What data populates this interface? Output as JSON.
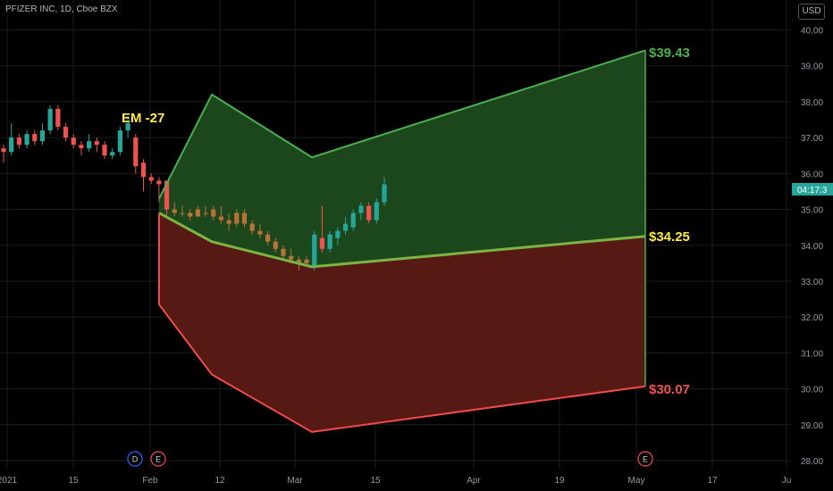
{
  "header": {
    "symbol": "PFIZER INC, 1D, Cboe BZX"
  },
  "currency": "USD",
  "price_badge": "04:17:3",
  "annotations": {
    "em": "EM -27",
    "upper": "$39.43",
    "mid": "$34.25",
    "lower": "$30.07"
  },
  "event_markers": [
    {
      "label": "D",
      "x": "Feb -6"
    },
    {
      "label": "E",
      "x": "Feb -2"
    },
    {
      "label": "E",
      "x": "May 1"
    }
  ],
  "colors": {
    "green": "#4caf50",
    "green_fill": "#1d4a1e",
    "red": "#f04a4a",
    "red_fill": "#5c1a14",
    "candle_up": "#26a69a",
    "candle_down": "#ef5350",
    "candle_brown": "#b5733a",
    "label_green": "#4caf50",
    "label_yellow": "#ffeb3b",
    "label_red": "#ef5350",
    "grid": "#1c1c1c",
    "axis_text": "#9598a1",
    "badge": "#26a69a",
    "marker_blue": "#2962ff"
  },
  "chart_data": {
    "type": "candlestick",
    "x_axis_ticks": [
      "2021",
      "15",
      "Feb",
      "12",
      "Mar",
      "15",
      "Apr",
      "19",
      "May",
      "17",
      "Ju"
    ],
    "y_axis_ticks": [
      "40.00",
      "39.00",
      "38.00",
      "37.00",
      "36.00",
      "35.00",
      "34.00",
      "33.00",
      "32.00",
      "31.00",
      "30.00",
      "29.00",
      "28.00"
    ],
    "ylim": [
      28,
      40
    ],
    "candles_ohlc": [
      [
        36.7,
        36.8,
        36.3,
        36.6
      ],
      [
        36.6,
        37.4,
        36.5,
        37.0
      ],
      [
        37.0,
        37.1,
        36.7,
        36.8
      ],
      [
        36.8,
        37.2,
        36.7,
        37.1
      ],
      [
        37.1,
        37.2,
        36.8,
        36.9
      ],
      [
        36.9,
        37.4,
        36.8,
        37.2
      ],
      [
        37.2,
        37.9,
        37.1,
        37.8
      ],
      [
        37.8,
        37.9,
        37.2,
        37.3
      ],
      [
        37.3,
        37.4,
        36.9,
        37.0
      ],
      [
        37.0,
        37.1,
        36.7,
        36.8
      ],
      [
        36.8,
        36.9,
        36.5,
        36.7
      ],
      [
        36.7,
        37.1,
        36.6,
        36.9
      ],
      [
        36.9,
        37.0,
        36.6,
        36.8
      ],
      [
        36.8,
        36.9,
        36.4,
        36.5
      ],
      [
        36.5,
        36.7,
        36.4,
        36.6
      ],
      [
        36.6,
        37.3,
        36.5,
        37.2
      ],
      [
        37.2,
        37.6,
        37.0,
        37.4
      ],
      [
        37.0,
        37.1,
        36.0,
        36.2
      ],
      [
        36.3,
        36.4,
        35.5,
        35.9
      ],
      [
        35.9,
        36.0,
        35.7,
        35.8
      ],
      [
        35.8,
        35.9,
        35.2,
        35.7
      ],
      [
        35.8,
        35.8,
        34.8,
        35.0
      ],
      [
        35.0,
        35.2,
        34.8,
        34.9
      ],
      [
        34.9,
        35.1,
        34.8,
        34.9
      ],
      [
        34.9,
        35.0,
        34.7,
        34.8
      ],
      [
        34.8,
        35.1,
        34.8,
        35.0
      ],
      [
        34.9,
        35.1,
        34.8,
        34.9
      ],
      [
        35.0,
        35.1,
        34.7,
        34.8
      ],
      [
        34.8,
        35.1,
        34.6,
        34.7
      ],
      [
        34.7,
        34.9,
        34.4,
        34.6
      ],
      [
        34.6,
        35.0,
        34.5,
        34.9
      ],
      [
        34.9,
        35.0,
        34.5,
        34.6
      ],
      [
        34.6,
        34.7,
        34.3,
        34.4
      ],
      [
        34.4,
        34.6,
        34.2,
        34.3
      ],
      [
        34.3,
        34.4,
        34.0,
        34.1
      ],
      [
        34.1,
        34.2,
        33.8,
        33.9
      ],
      [
        33.9,
        34.0,
        33.6,
        33.7
      ],
      [
        33.7,
        33.9,
        33.5,
        33.6
      ],
      [
        33.6,
        33.7,
        33.3,
        33.5
      ],
      [
        33.5,
        33.7,
        33.4,
        33.6
      ],
      [
        33.4,
        34.4,
        33.3,
        34.3
      ],
      [
        34.2,
        35.1,
        33.8,
        33.9
      ],
      [
        33.9,
        34.4,
        33.8,
        34.3
      ],
      [
        34.2,
        34.5,
        34.0,
        34.4
      ],
      [
        34.4,
        34.8,
        34.3,
        34.6
      ],
      [
        34.5,
        35.0,
        34.4,
        34.9
      ],
      [
        34.9,
        35.2,
        34.7,
        35.1
      ],
      [
        35.1,
        35.2,
        34.6,
        34.7
      ],
      [
        34.7,
        35.3,
        34.6,
        35.2
      ],
      [
        35.2,
        35.9,
        35.1,
        35.7
      ]
    ],
    "expected_move_levels": [
      {
        "name": "$39.43",
        "values": [
          35.3,
          38.2,
          36.45,
          39.43
        ]
      },
      {
        "name": "$34.25",
        "values": [
          34.9,
          34.1,
          33.4,
          34.25
        ]
      },
      {
        "name": "$30.07",
        "values": [
          34.9,
          32.35,
          30.4,
          28.8,
          30.07
        ]
      }
    ]
  }
}
